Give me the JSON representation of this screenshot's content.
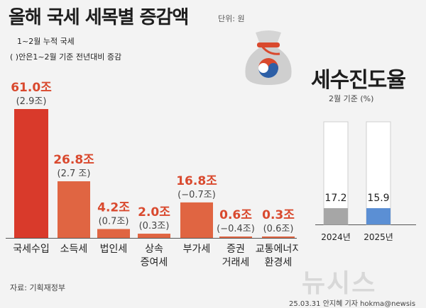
{
  "header": {
    "title": "올해 국세 세목별 증감액",
    "unit": "단위: 원",
    "note_period": "1~2월 누적 국세",
    "note_paren": "( )안은1~2월 기준 전년대비 증감"
  },
  "right_panel": {
    "title": "세수진도율",
    "subtitle": "2월 기준 (%)"
  },
  "footer": {
    "source": "자료: 기획재정부",
    "credit": "25.03.31 안지혜 기자 hokma@newsis",
    "watermark": "뉴시스"
  },
  "colors": {
    "bar_main": "#d93a2b",
    "bar_other": "#e06542",
    "value_text": "#d9492e",
    "progress_2024": "#a6a6a6",
    "progress_2025": "#5b8fd4"
  },
  "chart_data": [
    {
      "type": "bar",
      "title": "",
      "unit": "조",
      "categories": [
        [
          "국세수입"
        ],
        [
          "소득세"
        ],
        [
          "법인세"
        ],
        [
          "상속",
          "증여세"
        ],
        [
          "부가세"
        ],
        [
          "증권",
          "거래세"
        ],
        [
          "교통에너지",
          "환경세"
        ]
      ],
      "values": [
        61.0,
        26.8,
        4.2,
        2.0,
        16.8,
        0.6,
        0.3
      ],
      "value_labels": [
        "61.0조",
        "26.8조",
        "4.2조",
        "2.0조",
        "16.8조",
        "0.6조",
        "0.3조"
      ],
      "yoy_change": [
        2.9,
        2.7,
        0.7,
        0.3,
        -0.7,
        -0.4,
        0.6
      ],
      "yoy_labels": [
        "(2.9조)",
        "(2.7 조)",
        "(0.7조)",
        "(0.3조)",
        "(−0.7조)",
        "(−0.4조)",
        "(0.6조)"
      ],
      "ylim": [
        0,
        61
      ]
    },
    {
      "type": "bar",
      "title": "세수진도율",
      "subtitle": "2월 기준 (%)",
      "categories": [
        "2024년",
        "2025년"
      ],
      "values": [
        17.2,
        15.9
      ],
      "value_labels": [
        "17.2",
        "15.9"
      ],
      "ylim": [
        0,
        100
      ]
    }
  ]
}
